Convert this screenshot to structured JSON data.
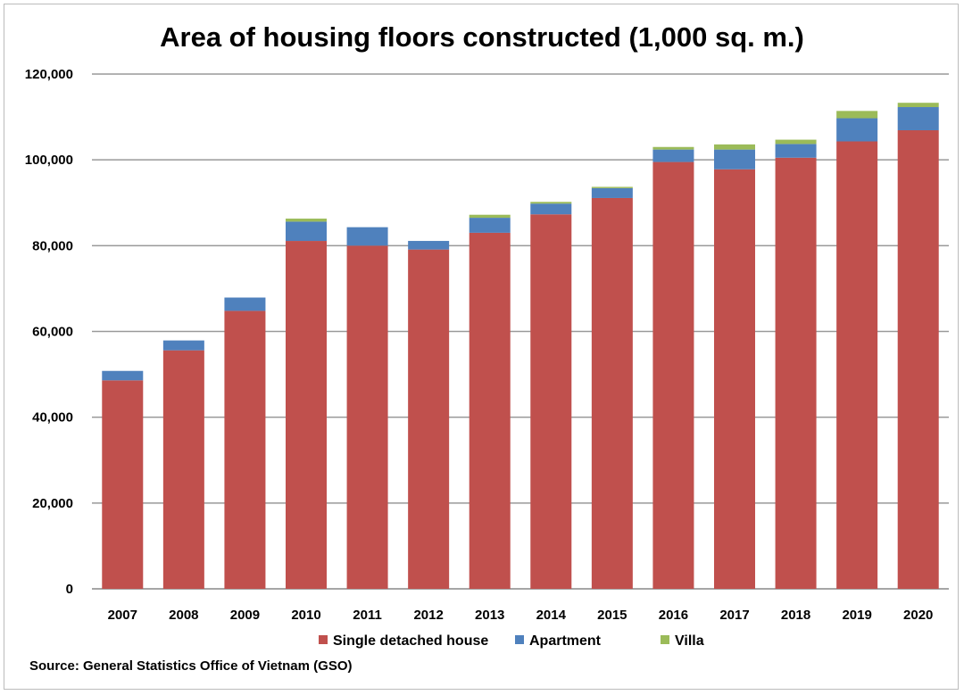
{
  "chart_data": {
    "type": "bar",
    "stacked": true,
    "title": "Area of housing floors constructed (1,000 sq. m.)",
    "xlabel": "",
    "ylabel": "",
    "ylim": [
      0,
      120000
    ],
    "yticks": [
      0,
      20000,
      40000,
      60000,
      80000,
      100000,
      120000
    ],
    "ytick_labels": [
      "0",
      "20,000",
      "40,000",
      "60,000",
      "80,000",
      "100,000",
      "120,000"
    ],
    "grid": true,
    "legend_position": "bottom",
    "categories": [
      "2007",
      "2008",
      "2009",
      "2010",
      "2011",
      "2012",
      "2013",
      "2014",
      "2015",
      "2016",
      "2017",
      "2018",
      "2019",
      "2020"
    ],
    "series": [
      {
        "name": "Single detached house",
        "color": "#C0504D",
        "values": [
          48600,
          55600,
          64800,
          81100,
          80000,
          79100,
          83000,
          87300,
          91100,
          99500,
          97800,
          100500,
          104300,
          106900
        ]
      },
      {
        "name": "Apartment",
        "color": "#4F81BD",
        "values": [
          2200,
          2300,
          3100,
          4500,
          4300,
          2000,
          3500,
          2500,
          2300,
          2900,
          4600,
          3200,
          5400,
          5400
        ]
      },
      {
        "name": "Villa",
        "color": "#9BBB59",
        "values": [
          0,
          0,
          0,
          700,
          0,
          0,
          700,
          400,
          300,
          600,
          1200,
          1000,
          1700,
          1000
        ]
      }
    ],
    "source": "Source: General Statistics Office of Vietnam (GSO)"
  }
}
